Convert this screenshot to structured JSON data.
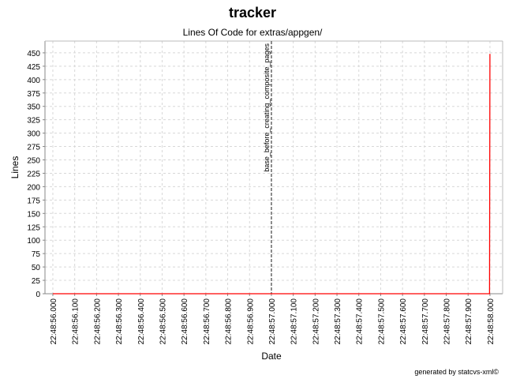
{
  "chart_data": {
    "type": "line",
    "title": "tracker",
    "subtitle": "Lines Of Code for extras/appgen/",
    "xlabel": "Date",
    "ylabel": "Lines",
    "footer": "generated by statcvs-xml©",
    "x_ticks": [
      "22:48:56.000",
      "22:48:56.100",
      "22:48:56.200",
      "22:48:56.300",
      "22:48:56.400",
      "22:48:56.500",
      "22:48:56.600",
      "22:48:56.700",
      "22:48:56.800",
      "22:48:56.900",
      "22:48:57.000",
      "22:48:57.100",
      "22:48:57.200",
      "22:48:57.300",
      "22:48:57.400",
      "22:48:57.500",
      "22:48:57.600",
      "22:48:57.700",
      "22:48:57.800",
      "22:48:57.900",
      "22:48:58.000"
    ],
    "y_ticks": [
      0,
      25,
      50,
      75,
      100,
      125,
      150,
      175,
      200,
      225,
      250,
      275,
      300,
      325,
      350,
      375,
      400,
      425,
      450
    ],
    "xlim_seconds": [
      55.964,
      58.058
    ],
    "ylim": [
      0,
      472
    ],
    "grid": true,
    "series": [
      {
        "color": "#ff0000",
        "points": [
          {
            "x": 56.0,
            "y": 0
          },
          {
            "x": 57.998,
            "y": 0
          },
          {
            "x": 58.0,
            "y": 448
          }
        ]
      }
    ],
    "markers": [
      {
        "x": 57.0,
        "label": "base_before_creating_composite_pages"
      }
    ]
  }
}
